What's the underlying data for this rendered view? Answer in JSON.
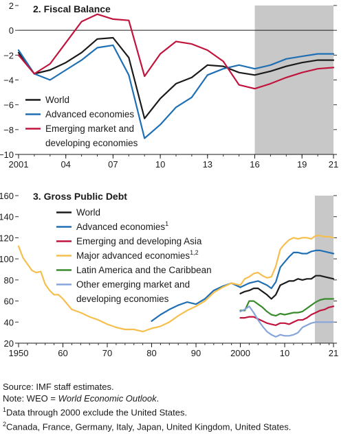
{
  "chart_data": [
    {
      "type": "line",
      "title": "2. Fiscal Balance",
      "x": [
        2001,
        2002,
        2003,
        2004,
        2005,
        2006,
        2007,
        2008,
        2009,
        2010,
        2011,
        2012,
        2013,
        2014,
        2015,
        2016,
        2017,
        2018,
        2019,
        2020,
        2021
      ],
      "xticks": [
        "2001",
        "04",
        "07",
        "10",
        "13",
        "16",
        "19",
        "21"
      ],
      "xtick_years": [
        2001,
        2004,
        2007,
        2010,
        2013,
        2016,
        2019,
        2021
      ],
      "xlim": [
        2001,
        2021
      ],
      "yticks": [
        "2",
        "0",
        "−2",
        "−4",
        "−6",
        "−8",
        "−10"
      ],
      "ytick_values": [
        2,
        0,
        -2,
        -4,
        -6,
        -8,
        -10
      ],
      "ylim": [
        -10,
        2
      ],
      "zero_line": true,
      "projection_shading_from": 2016.0,
      "legend_position": "lower-left",
      "series": [
        {
          "name": "World",
          "color": "#1a1a1a",
          "values": [
            -1.8,
            -3.5,
            -3.2,
            -2.6,
            -1.8,
            -0.7,
            -0.6,
            -2.2,
            -7.1,
            -5.5,
            -4.3,
            -3.8,
            -2.8,
            -2.9,
            -3.4,
            -3.6,
            -3.3,
            -2.9,
            -2.6,
            -2.4,
            -2.4
          ]
        },
        {
          "name": "Advanced economies",
          "color": "#1f6fb4",
          "values": [
            -1.6,
            -3.5,
            -4.0,
            -3.2,
            -2.4,
            -1.4,
            -1.2,
            -3.6,
            -8.7,
            -7.6,
            -6.2,
            -5.4,
            -3.6,
            -3.1,
            -2.8,
            -3.1,
            -2.8,
            -2.3,
            -2.1,
            -1.9,
            -1.9
          ]
        },
        {
          "name": "Emerging market and developing economies",
          "legend_lines": [
            "Emerging market and",
            "developing economies"
          ],
          "color": "#c0143c",
          "values": [
            -2.0,
            -3.5,
            -2.7,
            -1.0,
            0.7,
            1.3,
            0.9,
            0.8,
            -3.7,
            -1.9,
            -0.9,
            -1.1,
            -1.6,
            -2.5,
            -4.4,
            -4.7,
            -4.3,
            -3.8,
            -3.4,
            -3.1,
            -3.0
          ]
        }
      ]
    },
    {
      "type": "line",
      "title": "3. Gross Public Debt",
      "xticks": [
        "1950",
        "60",
        "70",
        "80",
        "90",
        "2000",
        "10",
        "21"
      ],
      "xtick_years": [
        1950,
        1960,
        1970,
        1980,
        1990,
        2000,
        2010,
        2021
      ],
      "xlim": [
        1950,
        2021
      ],
      "yticks": [
        "160",
        "140",
        "120",
        "100",
        "80",
        "60",
        "40",
        "20"
      ],
      "ytick_values": [
        160,
        140,
        120,
        100,
        80,
        60,
        40,
        20
      ],
      "ylim": [
        20,
        160
      ],
      "projection_shading_from": 2016.8,
      "legend_position": "top-left",
      "series": [
        {
          "name": "World",
          "color": "#1a1a1a",
          "x": [
            2000,
            2001,
            2002,
            2003,
            2004,
            2005,
            2006,
            2007,
            2008,
            2009,
            2010,
            2011,
            2012,
            2013,
            2014,
            2015,
            2016,
            2017,
            2018,
            2019,
            2020,
            2021
          ],
          "values": [
            67,
            69,
            70,
            72,
            72,
            69,
            66,
            62,
            66,
            75,
            77,
            79,
            79,
            81,
            80,
            81,
            81,
            84,
            84,
            83,
            82,
            81
          ]
        },
        {
          "name": "Advanced economies",
          "sup": "1",
          "color": "#1f6fb4",
          "x": [
            1980,
            1982,
            1984,
            1986,
            1988,
            1990,
            1992,
            1994,
            1996,
            1998,
            2000,
            2001,
            2002,
            2003,
            2004,
            2005,
            2006,
            2007,
            2008,
            2009,
            2010,
            2011,
            2012,
            2013,
            2014,
            2015,
            2016,
            2017,
            2018,
            2019,
            2020,
            2021
          ],
          "values": [
            41,
            47,
            52,
            56,
            59,
            57,
            62,
            70,
            74,
            77,
            73,
            75,
            77,
            78,
            79,
            77,
            75,
            72,
            78,
            92,
            97,
            102,
            106,
            106,
            105,
            105,
            107,
            108,
            108,
            107,
            106,
            105
          ]
        },
        {
          "name": "Emerging and developing Asia",
          "color": "#c0143c",
          "x": [
            2000,
            2001,
            2002,
            2003,
            2004,
            2005,
            2006,
            2007,
            2008,
            2009,
            2010,
            2011,
            2012,
            2013,
            2014,
            2015,
            2016,
            2017,
            2018,
            2019,
            2020,
            2021
          ],
          "values": [
            44,
            44,
            45,
            45,
            43,
            41,
            39,
            38,
            37,
            39,
            39,
            38,
            40,
            42,
            42,
            44,
            47,
            49,
            51,
            52,
            54,
            55
          ]
        },
        {
          "name": "Major advanced economies",
          "sup": "1,2",
          "color": "#f6bf4d",
          "x": [
            1950,
            1951,
            1952,
            1953,
            1954,
            1955,
            1956,
            1957,
            1958,
            1959,
            1960,
            1962,
            1964,
            1966,
            1968,
            1970,
            1972,
            1974,
            1976,
            1978,
            1980,
            1982,
            1984,
            1986,
            1988,
            1990,
            1992,
            1994,
            1996,
            1998,
            2000,
            2001,
            2002,
            2003,
            2004,
            2005,
            2006,
            2007,
            2008,
            2009,
            2010,
            2011,
            2012,
            2013,
            2014,
            2015,
            2016,
            2017,
            2018,
            2019,
            2020,
            2021
          ],
          "values": [
            112,
            101,
            95,
            89,
            87,
            88,
            76,
            70,
            66,
            66,
            62,
            52,
            49,
            45,
            42,
            38,
            35,
            33,
            33,
            31,
            34,
            36,
            40,
            46,
            51,
            55,
            60,
            68,
            73,
            77,
            75,
            81,
            83,
            86,
            87,
            84,
            82,
            83,
            93,
            109,
            114,
            118,
            120,
            119,
            120,
            120,
            119,
            122,
            122,
            121,
            121,
            120
          ]
        },
        {
          "name": "Latin America and the Caribbean",
          "color": "#3a8a2e",
          "x": [
            2000,
            2001,
            2002,
            2003,
            2004,
            2005,
            2006,
            2007,
            2008,
            2009,
            2010,
            2011,
            2012,
            2013,
            2014,
            2015,
            2016,
            2017,
            2018,
            2019,
            2020,
            2021
          ],
          "values": [
            51,
            51,
            60,
            60,
            57,
            54,
            50,
            47,
            46,
            48,
            47,
            48,
            49,
            49,
            50,
            53,
            56,
            59,
            61,
            62,
            62,
            62
          ]
        },
        {
          "name": "Other emerging market and developing economies",
          "legend_lines": [
            "Other emerging market and",
            "developing economies"
          ],
          "color": "#86a5dc",
          "x": [
            2000,
            2001,
            2002,
            2003,
            2004,
            2005,
            2006,
            2007,
            2008,
            2009,
            2010,
            2011,
            2012,
            2013,
            2014,
            2015,
            2016,
            2017,
            2018,
            2019,
            2020,
            2021
          ],
          "values": [
            50,
            52,
            55,
            49,
            42,
            36,
            31,
            28,
            26,
            28,
            27,
            27,
            28,
            30,
            35,
            37,
            39,
            40,
            40,
            40,
            40,
            40
          ]
        }
      ]
    }
  ],
  "notes": {
    "source": "Source: IMF staff estimates.",
    "note_prefix": "Note: WEO = ",
    "note_italic": "World Economic Outlook",
    "note_suffix": ".",
    "fn1_sup": "1",
    "fn1_text": "Data through 2000 exclude the United States.",
    "fn2_sup": "2",
    "fn2_text": "Canada, France, Germany, Italy, Japan, United Kingdom, United States."
  }
}
